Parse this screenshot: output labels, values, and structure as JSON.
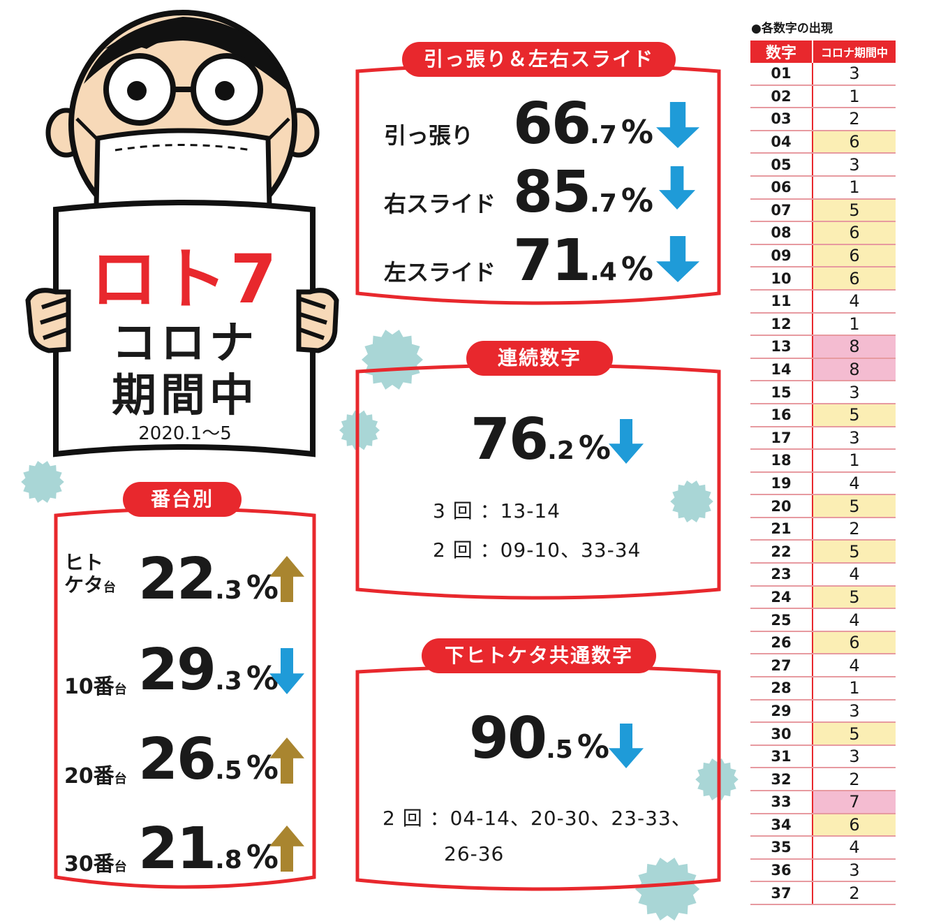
{
  "colors": {
    "accent": "#e8282d",
    "down_arrow": "#1f9bd8",
    "up_arrow": "#a9852f",
    "virus": "#a9d6d6",
    "hl_yellow": "#fbeeb4",
    "hl_pink": "#f4bcd1"
  },
  "hero": {
    "lotto": "ロト7",
    "corona": "コロナ",
    "period": "期間中",
    "date": "2020.1～5"
  },
  "pull_slide": {
    "title": "引っ張り＆左右スライド",
    "rows": [
      {
        "label": "引っ張り",
        "int": "66",
        "dec": ".7",
        "pct": "%",
        "trend": "down"
      },
      {
        "label": "右スライド",
        "int": "85",
        "dec": ".7",
        "pct": "%",
        "trend": "down"
      },
      {
        "label": "左スライド",
        "int": "71",
        "dec": ".4",
        "pct": "%",
        "trend": "down"
      }
    ]
  },
  "consecutive": {
    "title": "連続数字",
    "int": "76",
    "dec": ".2",
    "pct": "%",
    "trend": "down",
    "notes": [
      "3 回 ：13-14",
      "2 回 ：09-10、33-34"
    ]
  },
  "last_digit": {
    "title": "下ヒトケタ共通数字",
    "int": "90",
    "dec": ".5",
    "pct": "%",
    "trend": "down",
    "notes": [
      "2 回 ：04-14、20-30、23-33、",
      "26-36"
    ]
  },
  "ranges": {
    "title": "番台別",
    "rows": [
      {
        "label1": "ヒト",
        "label2": "ケタ",
        "suffix": "台",
        "int": "22",
        "dec": ".3",
        "pct": "%",
        "trend": "up"
      },
      {
        "label1": "",
        "label2": "10番",
        "suffix": "台",
        "int": "29",
        "dec": ".3",
        "pct": "%",
        "trend": "down"
      },
      {
        "label1": "",
        "label2": "20番",
        "suffix": "台",
        "int": "26",
        "dec": ".5",
        "pct": "%",
        "trend": "up"
      },
      {
        "label1": "",
        "label2": "30番",
        "suffix": "台",
        "int": "21",
        "dec": ".8",
        "pct": "%",
        "trend": "up"
      }
    ]
  },
  "table": {
    "title": "●各数字の出現",
    "headers": [
      "数字",
      "コロナ期間中"
    ],
    "rows": [
      [
        "01",
        "3",
        ""
      ],
      [
        "02",
        "1",
        ""
      ],
      [
        "03",
        "2",
        ""
      ],
      [
        "04",
        "6",
        "y"
      ],
      [
        "05",
        "3",
        ""
      ],
      [
        "06",
        "1",
        ""
      ],
      [
        "07",
        "5",
        "y"
      ],
      [
        "08",
        "6",
        "y"
      ],
      [
        "09",
        "6",
        "y"
      ],
      [
        "10",
        "6",
        "y"
      ],
      [
        "11",
        "4",
        ""
      ],
      [
        "12",
        "1",
        ""
      ],
      [
        "13",
        "8",
        "p"
      ],
      [
        "14",
        "8",
        "p"
      ],
      [
        "15",
        "3",
        ""
      ],
      [
        "16",
        "5",
        "y"
      ],
      [
        "17",
        "3",
        ""
      ],
      [
        "18",
        "1",
        ""
      ],
      [
        "19",
        "4",
        ""
      ],
      [
        "20",
        "5",
        "y"
      ],
      [
        "21",
        "2",
        ""
      ],
      [
        "22",
        "5",
        "y"
      ],
      [
        "23",
        "4",
        ""
      ],
      [
        "24",
        "5",
        "y"
      ],
      [
        "25",
        "4",
        ""
      ],
      [
        "26",
        "6",
        "y"
      ],
      [
        "27",
        "4",
        ""
      ],
      [
        "28",
        "1",
        ""
      ],
      [
        "29",
        "3",
        ""
      ],
      [
        "30",
        "5",
        "y"
      ],
      [
        "31",
        "3",
        ""
      ],
      [
        "32",
        "2",
        ""
      ],
      [
        "33",
        "7",
        "p"
      ],
      [
        "34",
        "6",
        "y"
      ],
      [
        "35",
        "4",
        ""
      ],
      [
        "36",
        "3",
        ""
      ],
      [
        "37",
        "2",
        ""
      ]
    ]
  }
}
